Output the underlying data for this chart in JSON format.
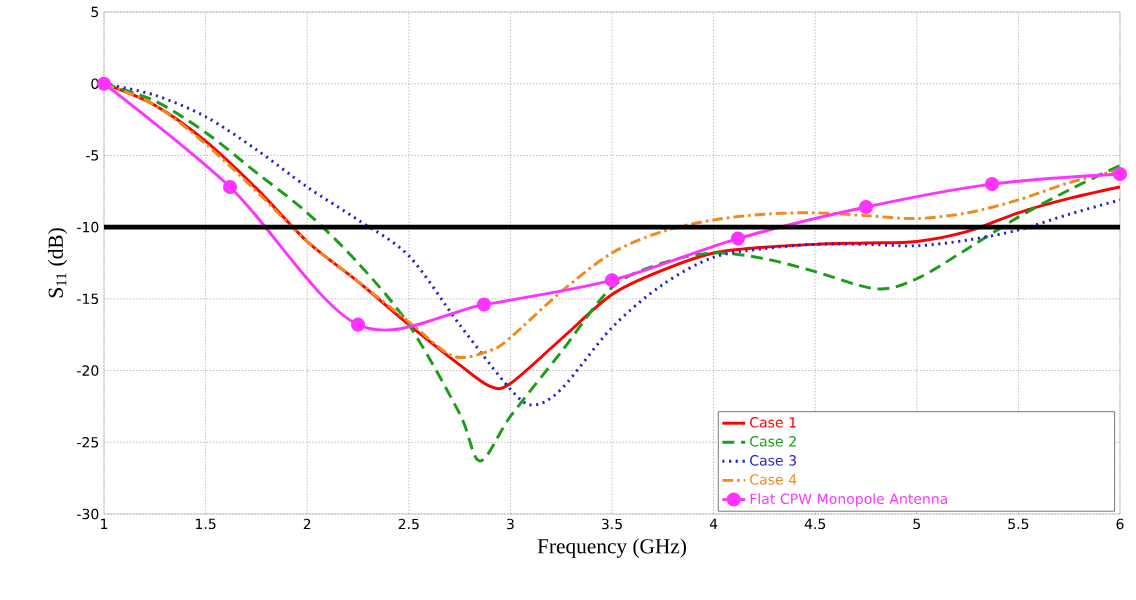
{
  "chart_data": {
    "type": "line",
    "xlabel": "Frequency (GHz)",
    "ylabel": "S$_{11}$ (dB)",
    "xlim": [
      1,
      6
    ],
    "ylim": [
      -30,
      5
    ],
    "xticks": [
      1,
      1.5,
      2,
      2.5,
      3,
      3.5,
      4,
      4.5,
      5,
      5.5,
      6
    ],
    "yticks": [
      -30,
      -25,
      -20,
      -15,
      -10,
      -5,
      0,
      5
    ],
    "grid": true,
    "legend": "bottom right",
    "ref_lines": [
      {
        "axis": "y",
        "value": -10,
        "color": "#000000",
        "line_style": "solid"
      }
    ],
    "series": [
      {
        "name": "Case 1",
        "color": "#ff0000",
        "line_style": "solid",
        "marker": "none",
        "x": [
          1,
          1.25,
          1.5,
          1.75,
          2,
          2.25,
          2.5,
          2.75,
          2.9,
          3,
          3.25,
          3.5,
          3.75,
          4,
          4.25,
          4.5,
          4.75,
          5,
          5.25,
          5.5,
          5.75,
          6
        ],
        "values": [
          0,
          -1.5,
          -4,
          -7.3,
          -11,
          -13.8,
          -16.8,
          -19.6,
          -21.1,
          -20.9,
          -17.8,
          -14.7,
          -13,
          -11.8,
          -11.4,
          -11.2,
          -11.1,
          -11,
          -10.3,
          -9,
          -8,
          -7.2
        ]
      },
      {
        "name": "Case 2",
        "color": "#1a9e1a",
        "line_style": "dashed",
        "marker": "none",
        "x": [
          1,
          1.25,
          1.5,
          1.75,
          2,
          2.25,
          2.5,
          2.75,
          2.85,
          3,
          3.25,
          3.5,
          3.75,
          4,
          4.25,
          4.5,
          4.8,
          5,
          5.25,
          5.5,
          5.75,
          6
        ],
        "values": [
          0,
          -1.2,
          -3.4,
          -6.2,
          -9,
          -12.5,
          -16.8,
          -23,
          -26.3,
          -23.2,
          -18.7,
          -14.2,
          -12.5,
          -11.8,
          -12.2,
          -13.1,
          -14.3,
          -13.6,
          -11.5,
          -9.3,
          -7.4,
          -5.7
        ]
      },
      {
        "name": "Case 3",
        "color": "#2222cc",
        "line_style": "dotted",
        "marker": "none",
        "x": [
          1,
          1.25,
          1.5,
          1.75,
          2,
          2.25,
          2.5,
          2.75,
          3,
          3.11,
          3.25,
          3.5,
          3.75,
          4,
          4.25,
          4.5,
          4.75,
          5,
          5.25,
          5.5,
          5.75,
          6
        ],
        "values": [
          0,
          -0.8,
          -2.3,
          -4.6,
          -7.2,
          -9.5,
          -12,
          -16.8,
          -21.3,
          -22.4,
          -21.3,
          -17,
          -14,
          -12.1,
          -11.5,
          -11.2,
          -11.2,
          -11.3,
          -10.9,
          -10.2,
          -9.1,
          -8.1
        ]
      },
      {
        "name": "Case 4",
        "color": "#f08a1e",
        "line_style": "dashdot",
        "marker": "none",
        "x": [
          1,
          1.25,
          1.5,
          1.75,
          2,
          2.25,
          2.5,
          2.72,
          2.9,
          3,
          3.25,
          3.5,
          3.75,
          4,
          4.25,
          4.5,
          4.75,
          5,
          5.25,
          5.5,
          5.75,
          6
        ],
        "values": [
          0,
          -1.5,
          -4.2,
          -7.5,
          -11,
          -13.8,
          -16.6,
          -19,
          -18.6,
          -17.7,
          -14.5,
          -11.8,
          -10.3,
          -9.5,
          -9.1,
          -9,
          -9.2,
          -9.4,
          -9,
          -8.1,
          -6.9,
          -6
        ]
      },
      {
        "name": "Flat CPW Monopole Antenna",
        "color": "#ff33ff",
        "line_style": "solid",
        "marker": "circle",
        "x": [
          1,
          1.62,
          2.25,
          2.87,
          3.5,
          4.12,
          4.75,
          5.37,
          6
        ],
        "values": [
          0,
          -7.2,
          -16.8,
          -15.4,
          -13.7,
          -10.8,
          -8.6,
          -7,
          -6.3
        ]
      }
    ]
  }
}
